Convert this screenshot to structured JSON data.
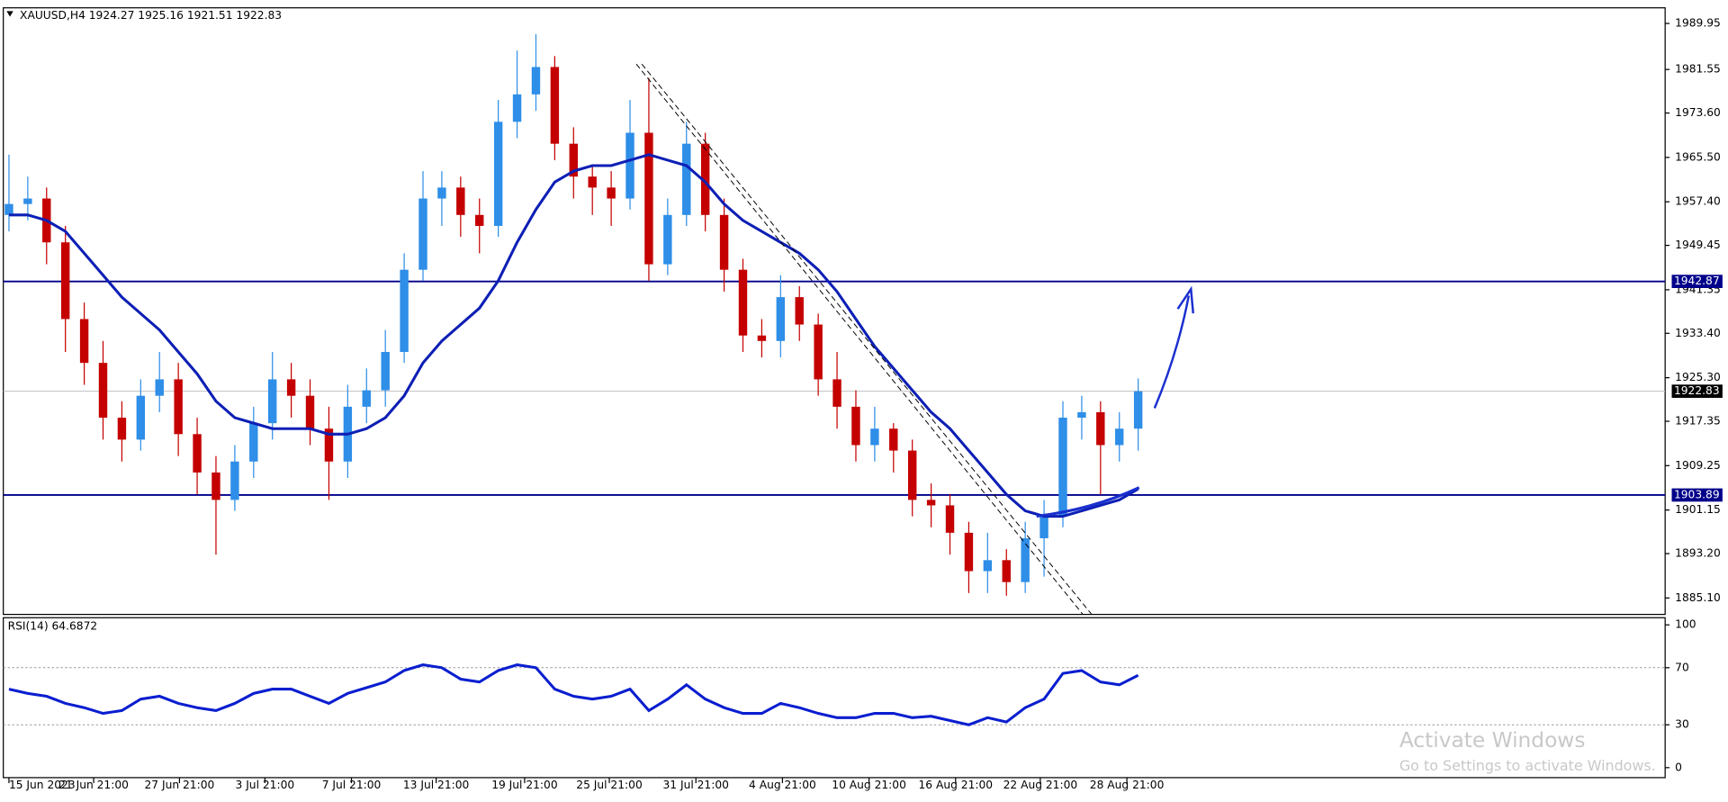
{
  "chart_data": {
    "type": "candlestick",
    "title": "XAUUSD,H4  1924.27 1925.16 1921.51 1922.83",
    "open": [
      1955,
      1957,
      1958,
      1950,
      1936,
      1928,
      1918,
      1914,
      1922,
      1925,
      1915,
      1908,
      1903,
      1910,
      1917,
      1925,
      1922,
      1916,
      1910,
      1920,
      1923,
      1930,
      1945,
      1958,
      1960,
      1955,
      1953,
      1972,
      1977,
      1982,
      1968,
      1962,
      1960,
      1958,
      1970,
      1946,
      1955,
      1968,
      1955,
      1945,
      1933,
      1932,
      1940,
      1935,
      1925,
      1920,
      1913,
      1916,
      1912,
      1903,
      1902,
      1897,
      1890,
      1892,
      1888,
      1896,
      1900,
      1918,
      1919,
      1913,
      1916
    ],
    "high": [
      1966,
      1962,
      1960,
      1953,
      1939,
      1932,
      1921,
      1925,
      1930,
      1928,
      1918,
      1911,
      1913,
      1920,
      1930,
      1928,
      1925,
      1920,
      1924,
      1927,
      1934,
      1948,
      1963,
      1963,
      1962,
      1958,
      1976,
      1985,
      1988,
      1984,
      1971,
      1964,
      1963,
      1976,
      1980,
      1958,
      1972,
      1970,
      1958,
      1947,
      1936,
      1944,
      1942,
      1937,
      1930,
      1923,
      1920,
      1917,
      1914,
      1906,
      1904,
      1899,
      1897,
      1894,
      1899,
      1903,
      1921,
      1922,
      1921,
      1919,
      1925.16
    ],
    "low": [
      1952,
      1954,
      1946,
      1930,
      1924,
      1914,
      1910,
      1912,
      1919,
      1911,
      1904,
      1893,
      1901,
      1907,
      1914,
      1918,
      1913,
      1903,
      1907,
      1917,
      1920,
      1928,
      1943,
      1953,
      1951,
      1948,
      1951,
      1969,
      1974,
      1965,
      1958,
      1955,
      1953,
      1956,
      1943,
      1944,
      1953,
      1952,
      1941,
      1930,
      1929,
      1929,
      1932,
      1922,
      1916,
      1910,
      1910,
      1908,
      1900,
      1898,
      1893,
      1886,
      1886,
      1885.5,
      1886,
      1889,
      1898,
      1914,
      1904,
      1910,
      1912
    ],
    "close": [
      1957,
      1958,
      1950,
      1936,
      1928,
      1918,
      1914,
      1922,
      1925,
      1915,
      1908,
      1903,
      1910,
      1917,
      1925,
      1922,
      1916,
      1910,
      1920,
      1923,
      1930,
      1945,
      1958,
      1960,
      1955,
      1953,
      1972,
      1977,
      1982,
      1968,
      1962,
      1960,
      1958,
      1970,
      1946,
      1955,
      1968,
      1955,
      1945,
      1933,
      1932,
      1940,
      1935,
      1925,
      1920,
      1913,
      1916,
      1912,
      1903,
      1902,
      1897,
      1890,
      1892,
      1888,
      1896,
      1900,
      1918,
      1919,
      1913,
      1916,
      1922.83
    ],
    "up_color": "#2e8ee8",
    "down_color": "#c40000",
    "ma": {
      "color": "#0d1fb5",
      "values": [
        1955,
        1955,
        1954,
        1952,
        1948,
        1944,
        1940,
        1937,
        1934,
        1930,
        1926,
        1921,
        1918,
        1917,
        1916,
        1916,
        1916,
        1915,
        1915,
        1916,
        1918,
        1922,
        1928,
        1932,
        1935,
        1938,
        1943,
        1950,
        1956,
        1961,
        1963,
        1964,
        1964,
        1965,
        1966,
        1965,
        1964,
        1961,
        1957,
        1954,
        1952,
        1950,
        1948,
        1945,
        1941,
        1936,
        1931,
        1927,
        1923,
        1919,
        1916,
        1912,
        1908,
        1904,
        1901,
        1900,
        1900,
        1901,
        1902,
        1903,
        1905
      ]
    },
    "xlim": [
      -0.3,
      88
    ],
    "xticks": [
      {
        "value": 0,
        "label": "15 Jun 2023"
      },
      {
        "value": 4.5,
        "label": "21 Jun 21:00"
      },
      {
        "value": 9.06,
        "label": "27 Jun 21:00"
      },
      {
        "value": 13.6,
        "label": "3 Jul 21:00"
      },
      {
        "value": 18.2,
        "label": "7 Jul 21:00"
      },
      {
        "value": 22.7,
        "label": "13 Jul 21:00"
      },
      {
        "value": 27.4,
        "label": "19 Jul 21:00"
      },
      {
        "value": 31.9,
        "label": "25 Jul 21:00"
      },
      {
        "value": 36.5,
        "label": "31 Jul 21:00"
      },
      {
        "value": 41.1,
        "label": "4 Aug 21:00"
      },
      {
        "value": 45.7,
        "label": "10 Aug 21:00"
      },
      {
        "value": 50.3,
        "label": "16 Aug 21:00"
      },
      {
        "value": 54.8,
        "label": "22 Aug 21:00"
      },
      {
        "value": 59.4,
        "label": "28 Aug 21:00"
      }
    ],
    "ylim": [
      1882.1,
      1992.8
    ],
    "yticks": [
      1989.95,
      1981.55,
      {
        "value": 1973.6,
        "label": "1973.60"
      },
      {
        "value": 1965.5,
        "label": "1965.50"
      },
      {
        "value": 1957.4,
        "label": "1957.40"
      },
      1949.45,
      1941.35,
      {
        "value": 1933.4,
        "label": "1933.40"
      },
      {
        "value": 1925.3,
        "label": "1925.30"
      },
      1917.35,
      1909.25,
      1901.15,
      {
        "value": 1893.2,
        "label": "1893.20"
      },
      {
        "value": 1885.1,
        "label": "1885.10"
      }
    ],
    "levels": [
      1942.87,
      1903.89
    ],
    "level_color": "#00008b",
    "last_price": 1922.83,
    "rsi": {
      "title": "RSI(14) 64.6872",
      "color": "#0a1ecf",
      "ylim": [
        -7,
        105
      ],
      "yticks": [
        100,
        70,
        30,
        0
      ],
      "levels": [
        70,
        30
      ],
      "values": [
        55,
        52,
        50,
        45,
        42,
        38,
        40,
        48,
        50,
        45,
        42,
        40,
        45,
        52,
        55,
        55,
        50,
        45,
        52,
        56,
        60,
        68,
        72,
        70,
        62,
        60,
        68,
        72,
        70,
        55,
        50,
        48,
        50,
        55,
        40,
        48,
        58,
        48,
        42,
        38,
        38,
        45,
        42,
        38,
        35,
        35,
        38,
        38,
        35,
        36,
        33,
        30,
        35,
        32,
        42,
        48,
        66,
        68,
        60,
        58,
        64.69
      ]
    }
  },
  "watermark": {
    "title": "Activate Windows",
    "subtitle": "Go to Settings to activate Windows."
  }
}
